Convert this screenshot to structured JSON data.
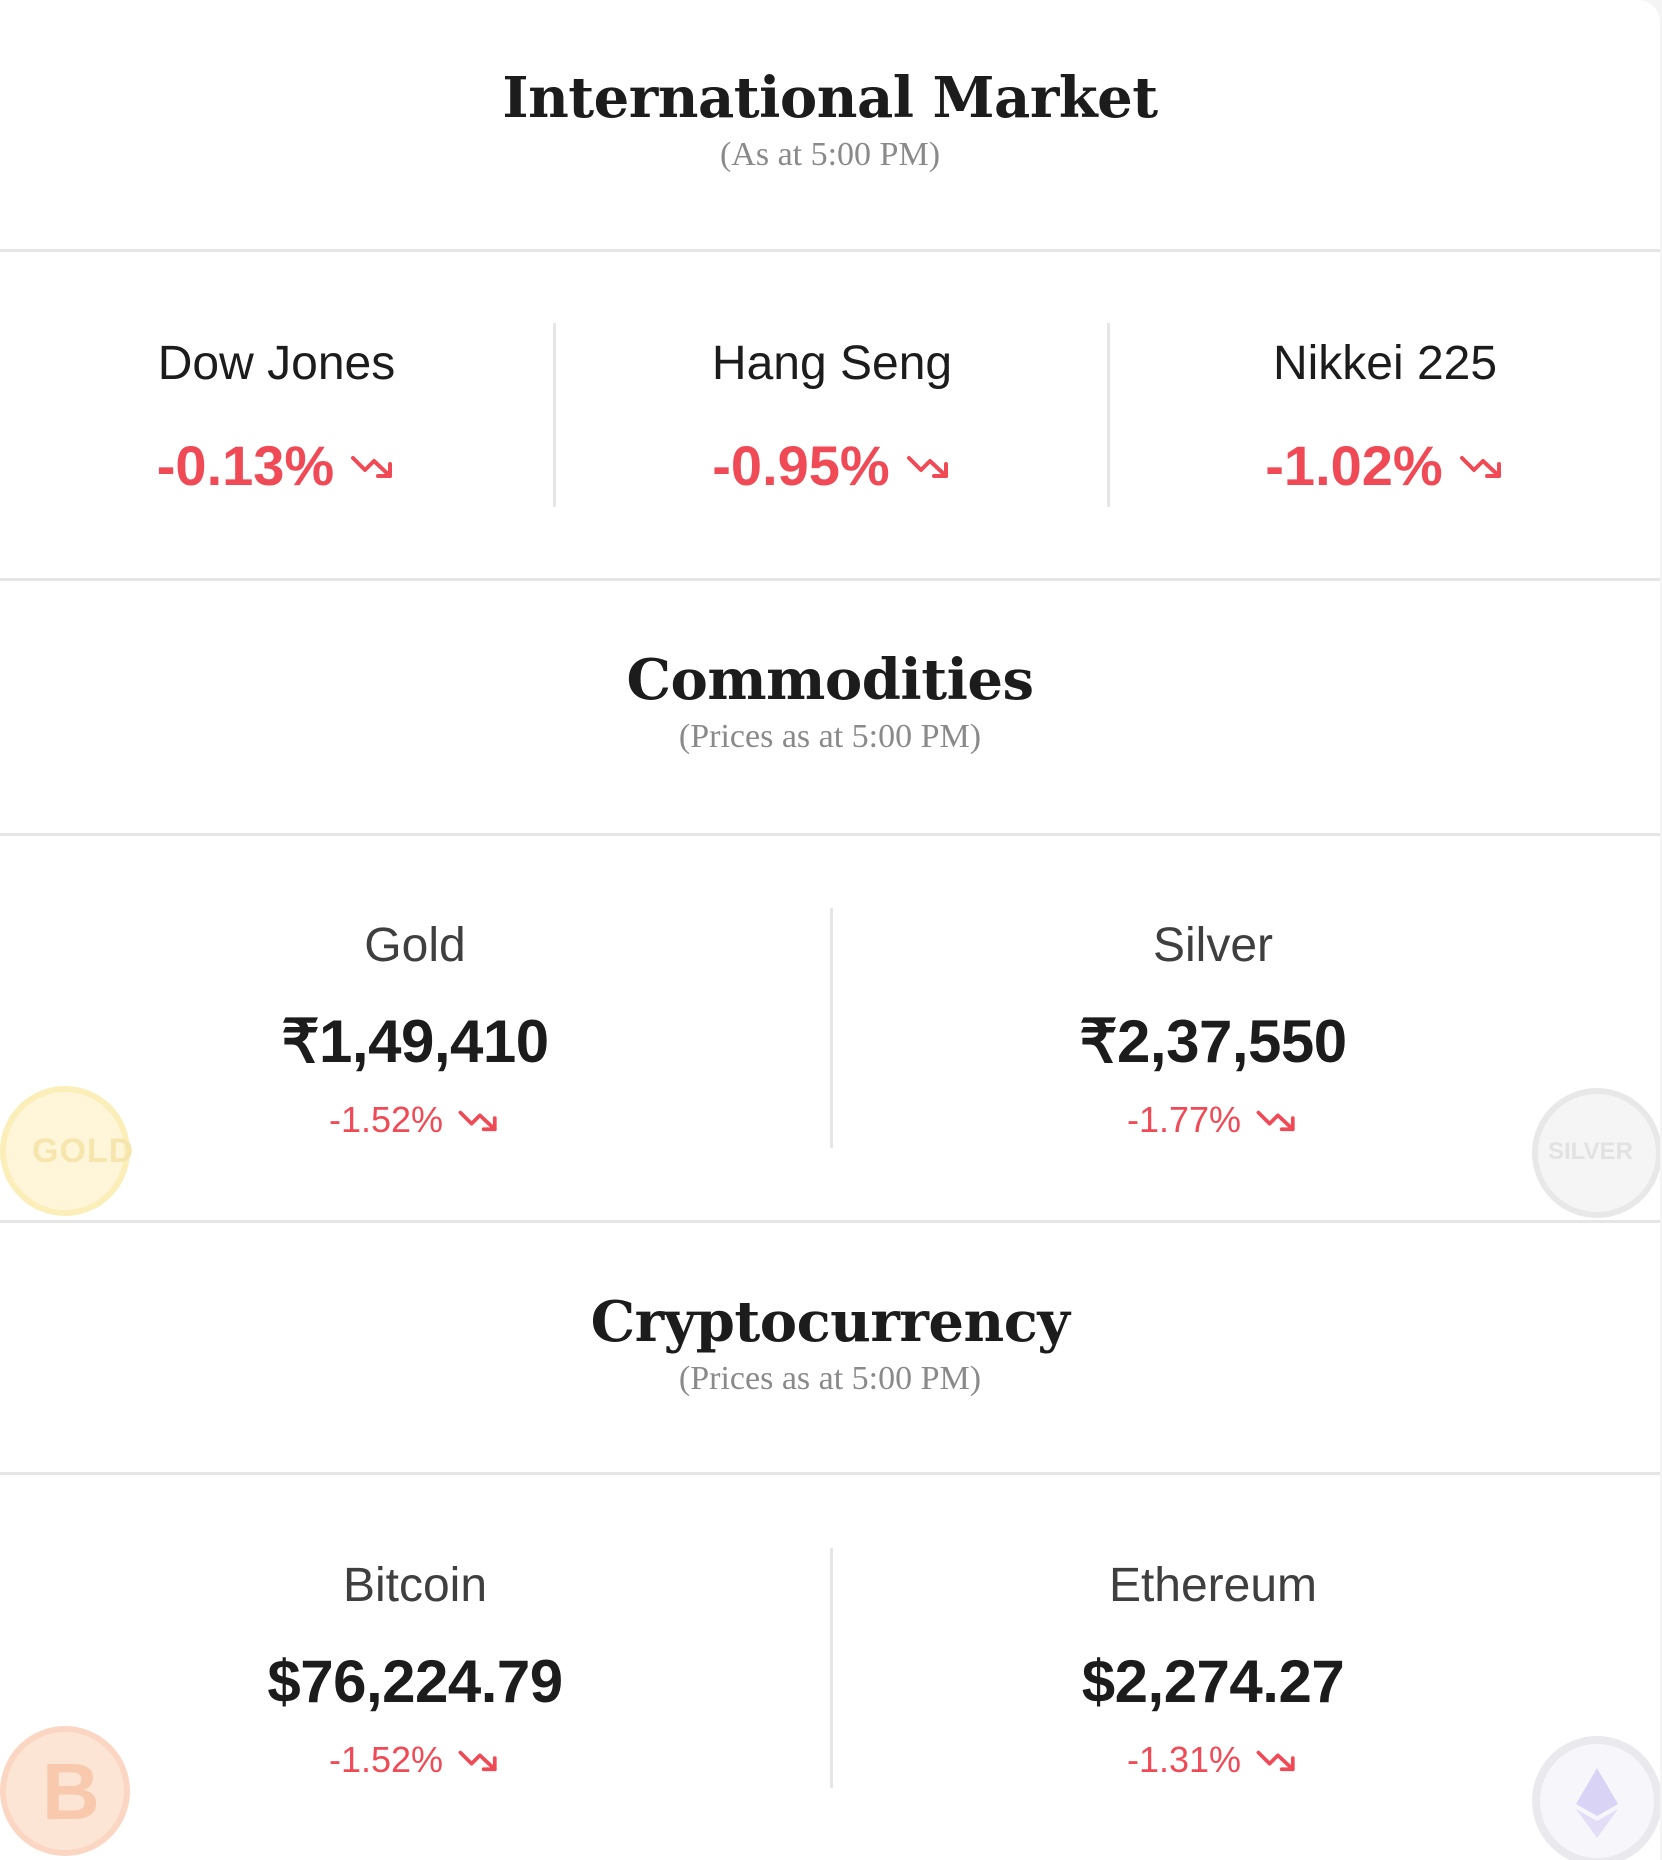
{
  "international": {
    "title": "International Market",
    "subtitle": "(As at 5:00 PM)",
    "indices": [
      {
        "name": "Dow Jones",
        "change": "-0.13%"
      },
      {
        "name": "Hang Seng",
        "change": "-0.95%"
      },
      {
        "name": "Nikkei 225",
        "change": "-1.02%"
      }
    ]
  },
  "commodities": {
    "title": "Commodities",
    "subtitle": "(Prices as at 5:00 PM)",
    "items": [
      {
        "name": "Gold",
        "price": "₹1,49,410",
        "change": "-1.52%",
        "coin_label": "GOLD"
      },
      {
        "name": "Silver",
        "price": "₹2,37,550",
        "change": "-1.77%",
        "coin_label": "SILVER"
      }
    ]
  },
  "crypto": {
    "title": "Cryptocurrency",
    "subtitle": "(Prices as at 5:00 PM)",
    "items": [
      {
        "name": "Bitcoin",
        "price": "$76,224.79",
        "change": "-1.52%",
        "coin_label": "B"
      },
      {
        "name": "Ethereum",
        "price": "$2,274.27",
        "change": "-1.31%"
      }
    ]
  },
  "colors": {
    "negative": "#ef4a55",
    "divider": "#e6e6e6",
    "subtitle": "#8a8a8a"
  },
  "icons": {
    "trend": "trending-down-icon",
    "gold_coin": "gold-coin-icon",
    "silver_coin": "silver-coin-icon",
    "bitcoin_coin": "bitcoin-coin-icon",
    "ethereum_coin": "ethereum-coin-icon"
  }
}
